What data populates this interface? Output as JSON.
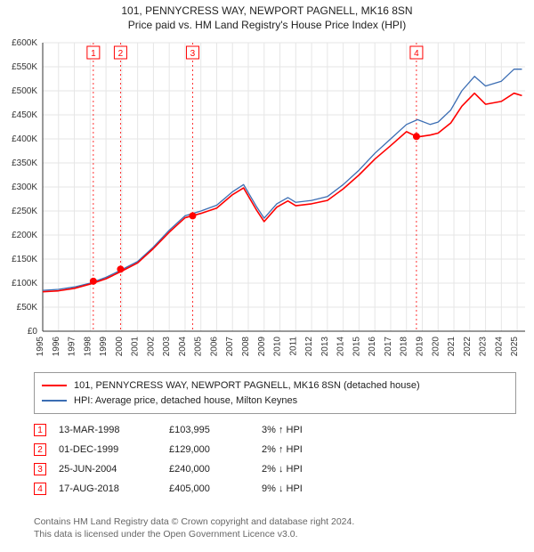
{
  "title_main": "101, PENNYCRESS WAY, NEWPORT PAGNELL, MK16 8SN",
  "title_sub": "Price paid vs. HM Land Registry's House Price Index (HPI)",
  "chart": {
    "type": "line",
    "background_color": "#ffffff",
    "grid_color": "#e6e6e6",
    "axis_color": "#333333",
    "axis_label_fontsize": 10,
    "x": {
      "min": 1995,
      "max": 2025.5,
      "ticks": [
        1995,
        1996,
        1997,
        1998,
        1999,
        2000,
        2001,
        2002,
        2003,
        2004,
        2005,
        2006,
        2007,
        2008,
        2009,
        2010,
        2011,
        2012,
        2013,
        2014,
        2015,
        2016,
        2017,
        2018,
        2019,
        2020,
        2021,
        2022,
        2023,
        2024,
        2025
      ]
    },
    "y": {
      "min": 0,
      "max": 600000,
      "ticks": [
        0,
        50000,
        100000,
        150000,
        200000,
        250000,
        300000,
        350000,
        400000,
        450000,
        500000,
        550000,
        600000
      ],
      "labels": [
        "£0",
        "£50K",
        "£100K",
        "£150K",
        "£200K",
        "£250K",
        "£300K",
        "£350K",
        "£400K",
        "£450K",
        "£500K",
        "£550K",
        "£600K"
      ]
    },
    "series": [
      {
        "name": "hpi",
        "color": "#3b6db3",
        "width": 1.3,
        "points": [
          [
            1995,
            85000
          ],
          [
            1996,
            87000
          ],
          [
            1997,
            92000
          ],
          [
            1998,
            100000
          ],
          [
            1999,
            112000
          ],
          [
            2000,
            128000
          ],
          [
            2001,
            145000
          ],
          [
            2002,
            175000
          ],
          [
            2003,
            210000
          ],
          [
            2004,
            240000
          ],
          [
            2005,
            250000
          ],
          [
            2006,
            262000
          ],
          [
            2007,
            290000
          ],
          [
            2007.7,
            305000
          ],
          [
            2008.5,
            260000
          ],
          [
            2009,
            235000
          ],
          [
            2009.8,
            265000
          ],
          [
            2010.5,
            278000
          ],
          [
            2011,
            268000
          ],
          [
            2012,
            272000
          ],
          [
            2013,
            280000
          ],
          [
            2014,
            305000
          ],
          [
            2015,
            335000
          ],
          [
            2016,
            370000
          ],
          [
            2017,
            400000
          ],
          [
            2018,
            430000
          ],
          [
            2018.7,
            440000
          ],
          [
            2019.5,
            430000
          ],
          [
            2020,
            435000
          ],
          [
            2020.8,
            460000
          ],
          [
            2021.5,
            500000
          ],
          [
            2022.3,
            530000
          ],
          [
            2023,
            510000
          ],
          [
            2024,
            520000
          ],
          [
            2024.8,
            545000
          ],
          [
            2025.3,
            545000
          ]
        ]
      },
      {
        "name": "price_paid",
        "color": "#ff0000",
        "width": 1.6,
        "points": [
          [
            1995,
            82000
          ],
          [
            1996,
            84000
          ],
          [
            1997,
            89000
          ],
          [
            1998,
            98000
          ],
          [
            1999,
            109000
          ],
          [
            2000,
            125000
          ],
          [
            2001,
            142000
          ],
          [
            2002,
            172000
          ],
          [
            2003,
            206000
          ],
          [
            2004,
            236000
          ],
          [
            2005,
            245000
          ],
          [
            2006,
            256000
          ],
          [
            2007,
            284000
          ],
          [
            2007.7,
            298000
          ],
          [
            2008.5,
            253000
          ],
          [
            2009,
            228000
          ],
          [
            2009.8,
            258000
          ],
          [
            2010.5,
            271000
          ],
          [
            2011,
            261000
          ],
          [
            2012,
            265000
          ],
          [
            2013,
            272000
          ],
          [
            2014,
            296000
          ],
          [
            2015,
            325000
          ],
          [
            2016,
            358000
          ],
          [
            2017,
            386000
          ],
          [
            2018,
            415000
          ],
          [
            2018.7,
            404000
          ],
          [
            2019.5,
            408000
          ],
          [
            2020,
            412000
          ],
          [
            2020.8,
            433000
          ],
          [
            2021.5,
            468000
          ],
          [
            2022.3,
            495000
          ],
          [
            2023,
            472000
          ],
          [
            2024,
            478000
          ],
          [
            2024.8,
            495000
          ],
          [
            2025.3,
            490000
          ]
        ]
      }
    ],
    "event_markers": [
      {
        "idx": "1",
        "year": 1998.2,
        "value": 103995
      },
      {
        "idx": "2",
        "year": 1999.92,
        "value": 129000
      },
      {
        "idx": "3",
        "year": 2004.48,
        "value": 240000
      },
      {
        "idx": "4",
        "year": 2018.63,
        "value": 405000
      }
    ],
    "marker_dot_color": "#ff0000",
    "marker_dot_radius": 4,
    "marker_box_stroke": "#ff0000",
    "marker_guide_color": "#ff0000",
    "marker_guide_dash": "2 3"
  },
  "legend": {
    "series_a": {
      "label": "101, PENNYCRESS WAY, NEWPORT PAGNELL, MK16 8SN (detached house)",
      "color": "#ff0000"
    },
    "series_b": {
      "label": "HPI: Average price, detached house, Milton Keynes",
      "color": "#3b6db3"
    }
  },
  "events": [
    {
      "idx": "1",
      "date": "13-MAR-1998",
      "price": "£103,995",
      "diff_pct": "3%",
      "diff_dir": "up",
      "diff_suffix": "HPI"
    },
    {
      "idx": "2",
      "date": "01-DEC-1999",
      "price": "£129,000",
      "diff_pct": "2%",
      "diff_dir": "up",
      "diff_suffix": "HPI"
    },
    {
      "idx": "3",
      "date": "25-JUN-2004",
      "price": "£240,000",
      "diff_pct": "2%",
      "diff_dir": "down",
      "diff_suffix": "HPI"
    },
    {
      "idx": "4",
      "date": "17-AUG-2018",
      "price": "£405,000",
      "diff_pct": "9%",
      "diff_dir": "down",
      "diff_suffix": "HPI"
    }
  ],
  "footer_line1": "Contains HM Land Registry data © Crown copyright and database right 2024.",
  "footer_line2": "This data is licensed under the Open Government Licence v3.0."
}
